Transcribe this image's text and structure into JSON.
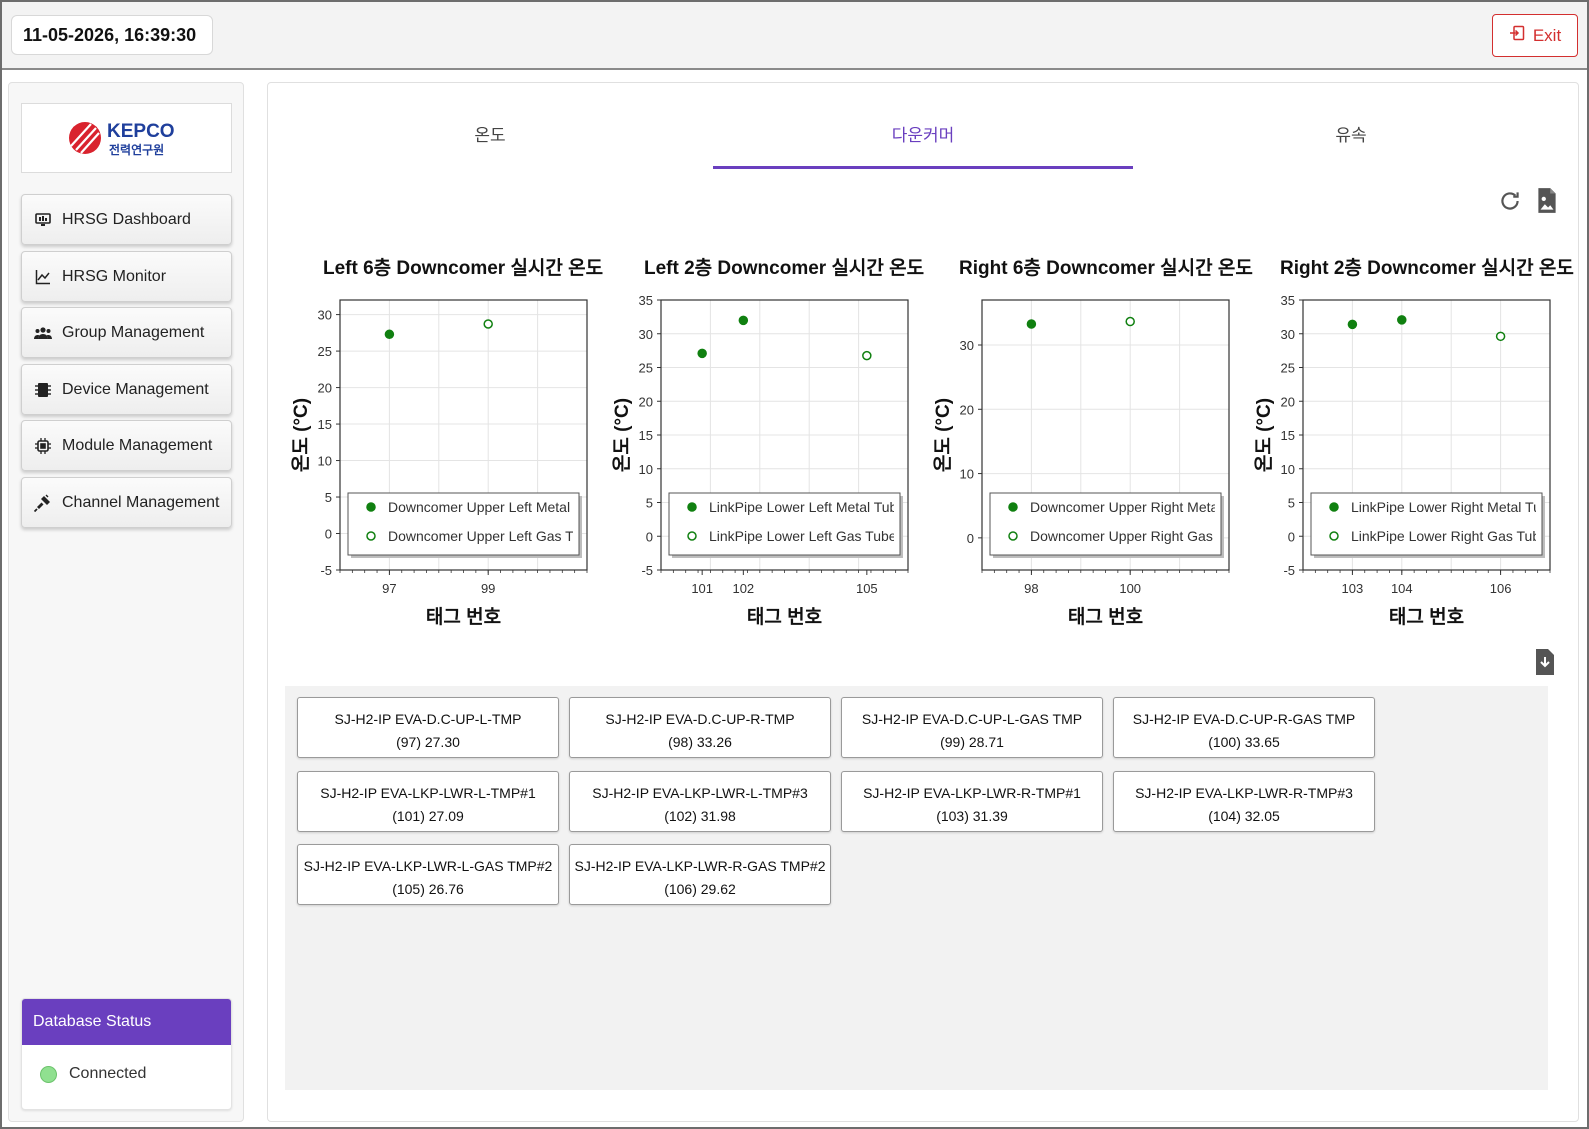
{
  "header": {
    "datetime": "11-05-2026, 16:39:30",
    "exit_label": "Exit"
  },
  "sidebar": {
    "logo_text": "KEPCO",
    "logo_subtext": "전력연구원",
    "items": [
      {
        "label": "HRSG Dashboard",
        "icon": "monitor-icon"
      },
      {
        "label": "HRSG Monitor",
        "icon": "line-chart-icon"
      },
      {
        "label": "Group Management",
        "icon": "users-icon"
      },
      {
        "label": "Device Management",
        "icon": "memory-chip-icon"
      },
      {
        "label": "Module Management",
        "icon": "cpu-icon"
      },
      {
        "label": "Channel Management",
        "icon": "plug-icon"
      }
    ],
    "db_status": {
      "title": "Database Status",
      "value": "Connected",
      "color": "#90e090"
    }
  },
  "tabs": [
    {
      "label": "온도",
      "active": false
    },
    {
      "label": "다운커머",
      "active": true
    },
    {
      "label": "유속",
      "active": false
    }
  ],
  "accent_color": "#6a3fbf",
  "chart_data": [
    {
      "type": "scatter",
      "title": "Left 6층 Downcomer 실시간 온도",
      "xlabel": "태그 번호",
      "ylabel": "온도 (°C)",
      "ylim": [
        -5,
        32
      ],
      "yticks": [
        -5,
        0,
        5,
        10,
        15,
        20,
        25,
        30
      ],
      "xlim": [
        96,
        101
      ],
      "xticks": [
        97,
        99
      ],
      "grid": true,
      "legend": "lower-center",
      "series": [
        {
          "name": "Downcomer Upper Left Metal Tube",
          "marker": "filled",
          "x": [
            97
          ],
          "y": [
            27.3
          ]
        },
        {
          "name": "Downcomer Upper Left Gas Tube",
          "marker": "hollow",
          "x": [
            99
          ],
          "y": [
            28.71
          ]
        }
      ]
    },
    {
      "type": "scatter",
      "title": "Left 2층 Downcomer 실시간 온도",
      "xlabel": "태그 번호",
      "ylabel": "온도 (°C)",
      "ylim": [
        -5,
        35
      ],
      "yticks": [
        -5,
        0,
        5,
        10,
        15,
        20,
        25,
        30,
        35
      ],
      "xlim": [
        100,
        106
      ],
      "xticks": [
        101,
        102,
        105
      ],
      "grid": true,
      "legend": "lower-center",
      "series": [
        {
          "name": "LinkPipe Lower Left Metal Tube",
          "marker": "filled",
          "x": [
            101,
            102
          ],
          "y": [
            27.09,
            31.98
          ]
        },
        {
          "name": "LinkPipe Lower Left Gas Tube",
          "marker": "hollow",
          "x": [
            105
          ],
          "y": [
            26.76
          ]
        }
      ]
    },
    {
      "type": "scatter",
      "title": "Right 6층 Downcomer 실시간 온도",
      "xlabel": "태그 번호",
      "ylabel": "온도 (°C)",
      "ylim": [
        -5,
        37
      ],
      "yticks": [
        0,
        10,
        20,
        30
      ],
      "xlim": [
        97,
        102
      ],
      "xticks": [
        98,
        100
      ],
      "grid": true,
      "legend": "lower-center",
      "series": [
        {
          "name": "Downcomer Upper Right Metal Tube",
          "marker": "filled",
          "x": [
            98
          ],
          "y": [
            33.26
          ]
        },
        {
          "name": "Downcomer Upper Right Gas Tube",
          "marker": "hollow",
          "x": [
            100
          ],
          "y": [
            33.65
          ]
        }
      ]
    },
    {
      "type": "scatter",
      "title": "Right 2층 Downcomer 실시간 온도",
      "xlabel": "태그 번호",
      "ylabel": "온도 (°C)",
      "ylim": [
        -5,
        35
      ],
      "yticks": [
        -5,
        0,
        5,
        10,
        15,
        20,
        25,
        30,
        35
      ],
      "xlim": [
        102,
        107
      ],
      "xticks": [
        103,
        104,
        106
      ],
      "grid": true,
      "legend": "lower-center",
      "series": [
        {
          "name": "LinkPipe Lower Right Metal Tube",
          "marker": "filled",
          "x": [
            103,
            104
          ],
          "y": [
            31.39,
            32.05
          ]
        },
        {
          "name": "LinkPipe Lower Right Gas Tube",
          "marker": "hollow",
          "x": [
            106
          ],
          "y": [
            29.62
          ]
        }
      ]
    }
  ],
  "cards": [
    {
      "name": "SJ-H2-IP EVA-D.C-UP-L-TMP",
      "value": "(97) 27.30"
    },
    {
      "name": "SJ-H2-IP EVA-D.C-UP-R-TMP",
      "value": "(98) 33.26"
    },
    {
      "name": "SJ-H2-IP EVA-D.C-UP-L-GAS TMP",
      "value": "(99) 28.71"
    },
    {
      "name": "SJ-H2-IP EVA-D.C-UP-R-GAS TMP",
      "value": "(100) 33.65"
    },
    {
      "name": "SJ-H2-IP EVA-LKP-LWR-L-TMP#1",
      "value": "(101) 27.09"
    },
    {
      "name": "SJ-H2-IP EVA-LKP-LWR-L-TMP#3",
      "value": "(102) 31.98"
    },
    {
      "name": "SJ-H2-IP EVA-LKP-LWR-R-TMP#1",
      "value": "(103) 31.39"
    },
    {
      "name": "SJ-H2-IP EVA-LKP-LWR-R-TMP#3",
      "value": "(104) 32.05"
    },
    {
      "name": "SJ-H2-IP EVA-LKP-LWR-L-GAS TMP#2",
      "value": "(105) 26.76"
    },
    {
      "name": "SJ-H2-IP EVA-LKP-LWR-R-GAS TMP#2",
      "value": "(106) 29.62"
    }
  ]
}
